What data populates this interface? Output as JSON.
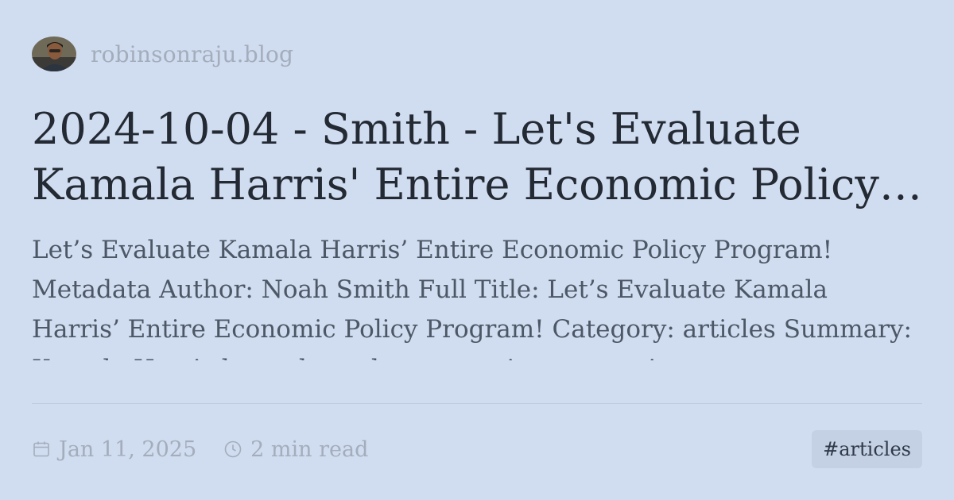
{
  "site": {
    "name": "robinsonraju.blog"
  },
  "post": {
    "title": "2024-10-04 - Smith - Let's Evaluate Kamala Harris' Entire Economic Policy Program!",
    "excerpt": "Let’s Evaluate Kamala Harris’ Entire Economic Policy Program! Metadata Author: Noah Smith Full Title: Let’s Evaluate Kamala Harris’ Entire Economic Policy Program! Category: articles Summary: Kamala Harris has released an extensive economic",
    "date": "Jan 11, 2025",
    "read_time": "2 min read",
    "tag": "#articles"
  },
  "icons": {
    "date": "calendar-icon",
    "read_time": "clock-icon"
  },
  "colors": {
    "background": "#d0dcf0",
    "title": "#232a33",
    "excerpt": "#4d5866",
    "muted": "#a3adbb",
    "tag_bg": "#c4d0e3"
  }
}
